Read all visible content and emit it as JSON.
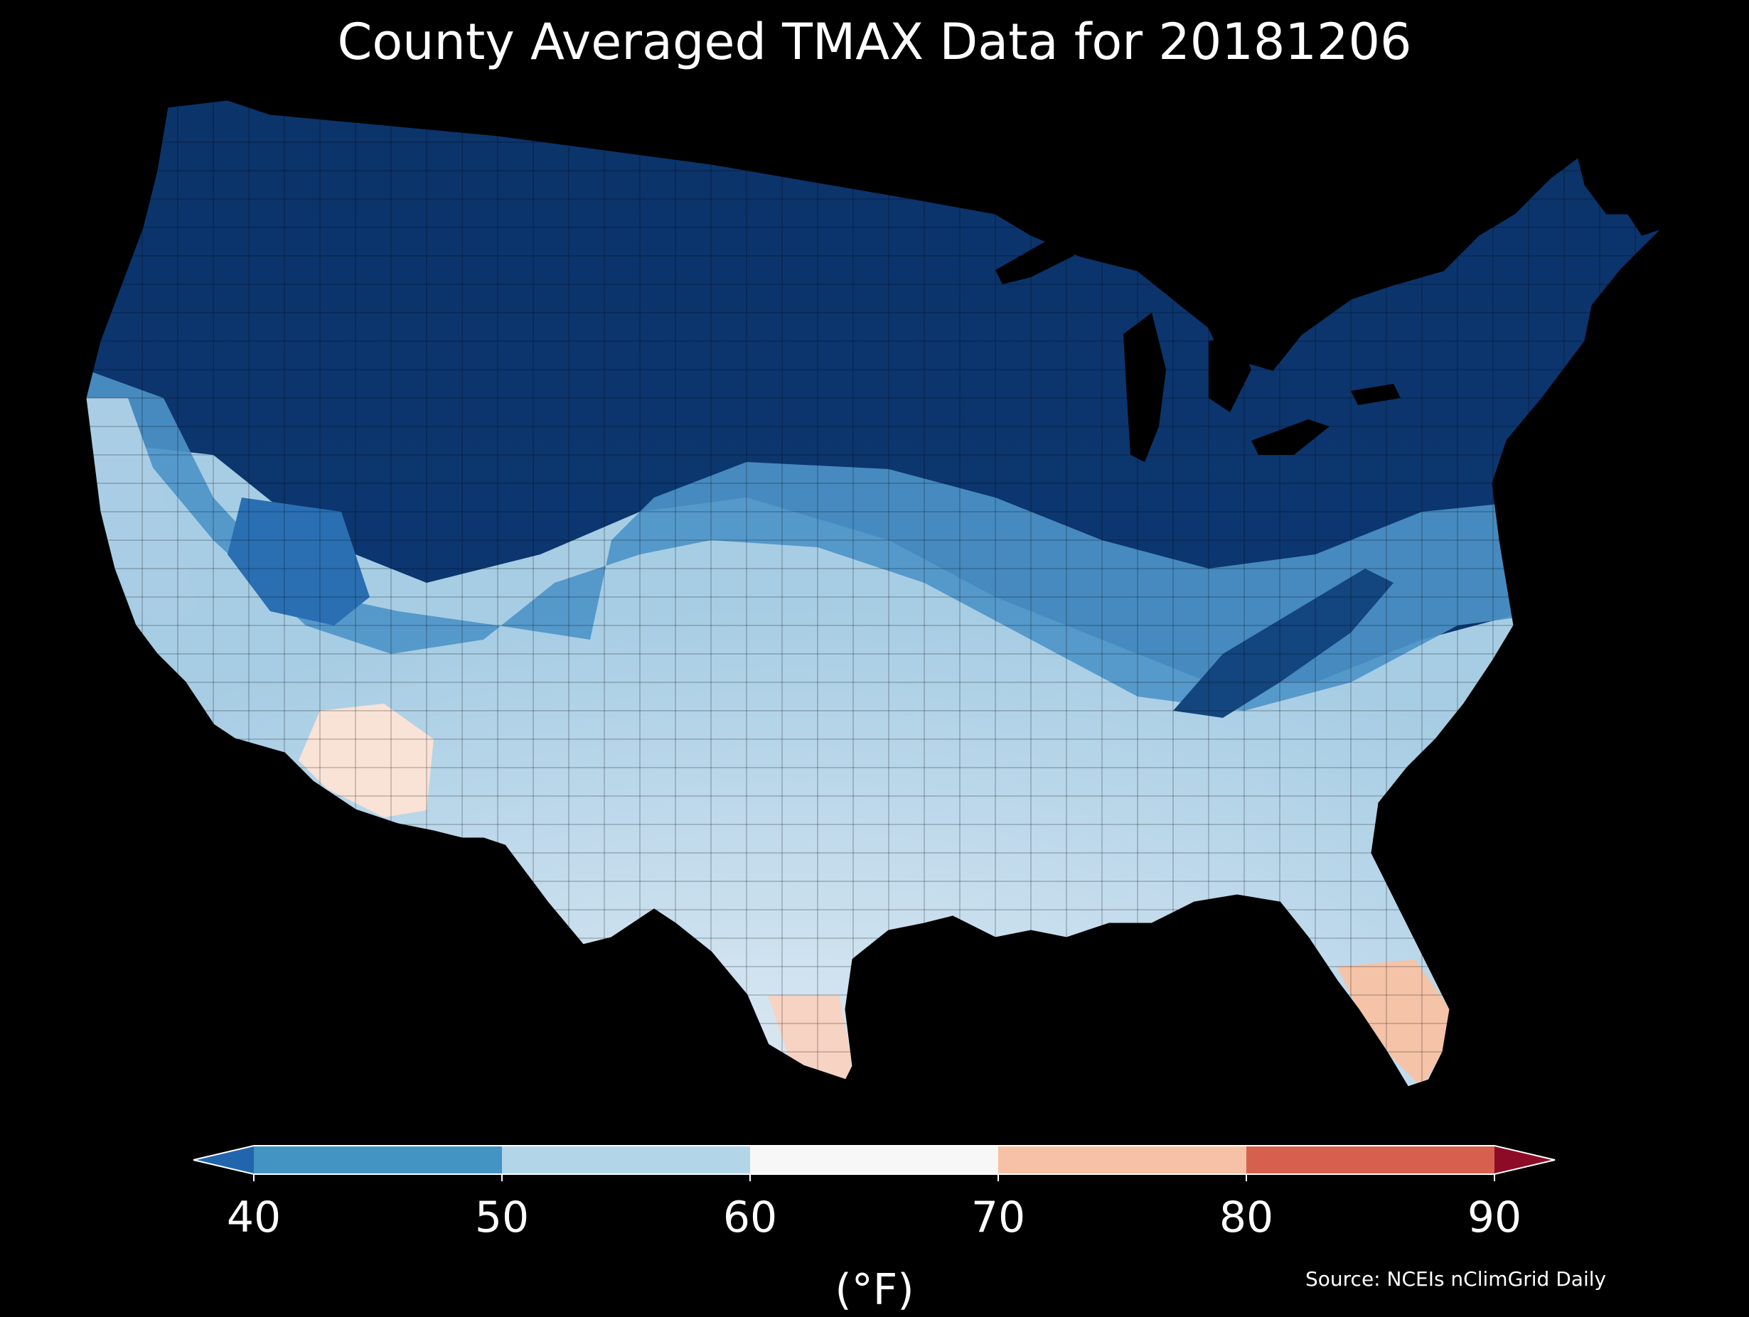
{
  "title": "County Averaged TMAX Data for 20181206",
  "source": "Source: NCEIs nClimGrid Daily",
  "colorbar": {
    "unit_label": "(°F)",
    "ticks": [
      "40",
      "50",
      "60",
      "70",
      "80",
      "90"
    ],
    "bins": [
      {
        "range": "<40",
        "color": "#2166ac"
      },
      {
        "range": "40-50",
        "color": "#4393c3"
      },
      {
        "range": "50-60",
        "color": "#b3d5e8"
      },
      {
        "range": "60-70",
        "color": "#f7f7f7"
      },
      {
        "range": "70-80",
        "color": "#f6c1a6"
      },
      {
        "range": "80-90",
        "color": "#d6604d"
      },
      {
        "range": ">90",
        "color": "#8e0b27"
      }
    ]
  },
  "map": {
    "region": "Contiguous United States, county level",
    "regional_temperatures_F": {
      "northern_rockies_plains_upper_midwest": "<40",
      "northeast": "<40",
      "appalachians": "<40",
      "pacific_northwest_coast": "40-50",
      "california_coast": "50-60",
      "southern_plains": "50-60",
      "southeast": "50-60",
      "gulf_coast": "60-70",
      "southern_arizona": "60-70",
      "south_texas_tip": "70-80",
      "south_florida": "70-80"
    }
  }
}
